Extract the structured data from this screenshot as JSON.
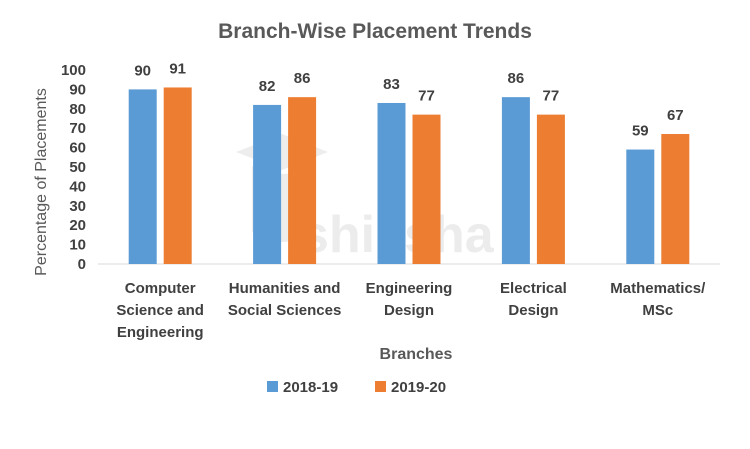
{
  "watermark": "shiksha",
  "chart_data": {
    "type": "bar",
    "title": "Branch-Wise Placement Trends",
    "xlabel": "Branches",
    "ylabel": "Percentage of Placements",
    "ylim": [
      0,
      100
    ],
    "yticks": [
      0,
      10,
      20,
      30,
      40,
      50,
      60,
      70,
      80,
      90,
      100
    ],
    "grid": false,
    "legend_position": "bottom",
    "categories": [
      [
        "Computer",
        "Science and",
        "Engineering"
      ],
      [
        "Humanities and",
        "Social Sciences"
      ],
      [
        "Engineering",
        "Design"
      ],
      [
        "Electrical",
        "Design"
      ],
      [
        "Mathematics/",
        "MSc"
      ]
    ],
    "series": [
      {
        "name": "2018-19",
        "color": "#5B9BD5",
        "values": [
          90,
          82,
          83,
          86,
          59
        ]
      },
      {
        "name": "2019-20",
        "color": "#ED7D31",
        "values": [
          91,
          86,
          77,
          77,
          67
        ]
      }
    ]
  }
}
